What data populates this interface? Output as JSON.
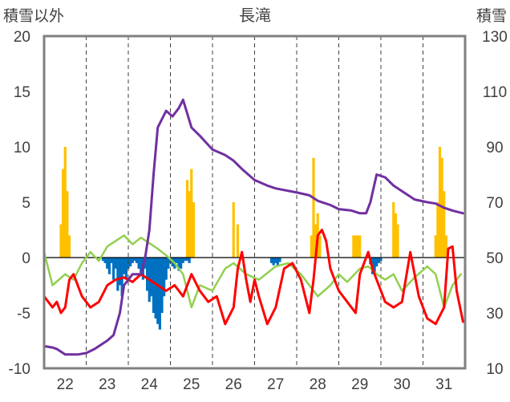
{
  "chart_data": {
    "type": "mixed",
    "title": "長滝",
    "left_axis_label": "積雪以外",
    "right_axis_label": "積雪",
    "left_ylim": [
      -10,
      20
    ],
    "left_ticks": [
      -10,
      -5,
      0,
      5,
      10,
      15,
      20
    ],
    "right_ylim": [
      10,
      130
    ],
    "right_ticks": [
      10,
      30,
      50,
      70,
      90,
      110,
      130
    ],
    "xlim": [
      21.5,
      31.5
    ],
    "x_tick_values": [
      22,
      23,
      24,
      25,
      26,
      27,
      28,
      29,
      30,
      31
    ],
    "x_tick_labels": [
      "22",
      "23",
      "24",
      "25",
      "26",
      "27",
      "28",
      "29",
      "30",
      "31"
    ],
    "grid": "vertical dashed at day boundaries",
    "colors": {
      "snow_depth": "#7030a0",
      "temperature": "#ff0000",
      "precipitation": "#ffc000",
      "snowfall_change": "#0070c0",
      "other_line": "#92d050",
      "frame": "#808080",
      "zero_line": "#000000"
    },
    "series": [
      {
        "axis": "right",
        "kind": "line",
        "color": "#7030a0",
        "x": [
          21.5,
          21.7,
          21.8,
          22.0,
          22.3,
          22.5,
          22.7,
          22.8,
          23.0,
          23.15,
          23.3,
          23.4,
          23.5,
          23.6,
          23.8,
          23.9,
          24.0,
          24.1,
          24.2,
          24.4,
          24.55,
          24.7,
          24.8,
          25.0,
          25.2,
          25.5,
          25.8,
          26.0,
          26.2,
          26.5,
          26.8,
          27.0,
          27.5,
          27.8,
          28.0,
          28.3,
          28.5,
          28.8,
          29.0,
          29.15,
          29.25,
          29.4,
          29.6,
          29.8,
          30.0,
          30.3,
          30.6,
          30.8,
          31.0,
          31.2,
          31.45
        ],
        "y": [
          18,
          17.5,
          17,
          15,
          15,
          15.5,
          17,
          18,
          20,
          22,
          30,
          40,
          42,
          44,
          44,
          50,
          60,
          80,
          97,
          103,
          101,
          104,
          107,
          97,
          94,
          89,
          87,
          85,
          82,
          78,
          76,
          75,
          73.5,
          72.5,
          70.5,
          69,
          67.5,
          67,
          66,
          66,
          70,
          80,
          79,
          76,
          74,
          71,
          70,
          69.5,
          68,
          67,
          66
        ]
      },
      {
        "axis": "left",
        "kind": "line",
        "color": "#92d050",
        "x": [
          21.5,
          21.7,
          22.0,
          22.2,
          22.4,
          22.6,
          22.8,
          23.0,
          23.2,
          23.4,
          23.6,
          23.8,
          24.0,
          24.2,
          24.4,
          24.6,
          24.8,
          25.0,
          25.2,
          25.5,
          25.8,
          26.0,
          26.3,
          26.6,
          27.0,
          27.3,
          27.6,
          28.0,
          28.3,
          28.5,
          28.7,
          29.0,
          29.2,
          29.4,
          29.6,
          29.8,
          30.0,
          30.3,
          30.6,
          30.8,
          31.0,
          31.2,
          31.4
        ],
        "y": [
          0.5,
          -2.5,
          -1.5,
          -2.0,
          -0.5,
          0.5,
          -0.3,
          1.0,
          1.5,
          2.0,
          1.2,
          1.8,
          1.3,
          0.8,
          0.2,
          -0.5,
          -1.5,
          -4.5,
          -2.5,
          -3.0,
          -1.0,
          -0.5,
          -1.5,
          -2.0,
          -0.8,
          -0.5,
          -1.5,
          -3.5,
          -2.5,
          -1.5,
          -2.2,
          -1.0,
          -0.8,
          -1.5,
          -2.0,
          -1.5,
          -3.0,
          -1.8,
          -0.8,
          -1.5,
          -4.5,
          -2.5,
          -1.5
        ]
      },
      {
        "axis": "left",
        "kind": "line",
        "color": "#ff0000",
        "x": [
          21.5,
          21.7,
          21.8,
          21.9,
          22.0,
          22.1,
          22.2,
          22.4,
          22.6,
          22.8,
          23.0,
          23.2,
          23.4,
          23.6,
          23.8,
          24.0,
          24.2,
          24.4,
          24.6,
          24.8,
          25.0,
          25.2,
          25.4,
          25.6,
          25.8,
          26.0,
          26.1,
          26.2,
          26.3,
          26.4,
          26.5,
          26.6,
          26.8,
          27.0,
          27.2,
          27.4,
          27.6,
          27.8,
          27.9,
          28.0,
          28.1,
          28.2,
          28.3,
          28.5,
          28.7,
          28.9,
          29.0,
          29.2,
          29.3,
          29.4,
          29.6,
          29.8,
          30.0,
          30.2,
          30.4,
          30.6,
          30.8,
          31.0,
          31.1,
          31.2,
          31.3,
          31.45
        ],
        "y": [
          -3.5,
          -4.5,
          -4.0,
          -5.0,
          -4.5,
          -2.0,
          -1.5,
          -3.5,
          -4.5,
          -4.0,
          -2.5,
          -2.0,
          -1.8,
          -2.2,
          -1.5,
          -2.0,
          -2.5,
          -3.0,
          -2.5,
          -3.5,
          -1.5,
          -3.0,
          -4.0,
          -3.5,
          -6.0,
          -4.5,
          -1.0,
          0.5,
          -2.0,
          -4.0,
          -2.0,
          -3.5,
          -6.0,
          -4.5,
          -1.0,
          -0.5,
          -2.0,
          -5.0,
          -2.0,
          2.0,
          2.5,
          1.5,
          -1.0,
          -3.0,
          -4.0,
          -5.0,
          -1.5,
          0.5,
          -1.0,
          -2.0,
          -4.0,
          -4.5,
          -4.0,
          0.5,
          -3.5,
          -5.5,
          -6.0,
          -4.5,
          0.8,
          1.0,
          -3.0,
          -5.8
        ]
      }
    ],
    "bars": [
      {
        "axis": "left",
        "color": "#ffc000",
        "x": [
          21.9,
          21.95,
          22.0,
          22.05,
          22.1,
          24.9,
          24.95,
          25.0,
          25.05,
          26.0,
          26.1,
          27.85,
          27.9,
          27.95,
          28.0,
          28.05,
          28.85,
          28.9,
          28.95,
          29.0,
          29.8,
          29.85,
          29.9,
          30.8,
          30.85,
          30.9,
          30.95,
          31.0,
          31.05
        ],
        "values": [
          3,
          8,
          10,
          6,
          2,
          7,
          6,
          8,
          5,
          5,
          3,
          2,
          9,
          3,
          4,
          2,
          2,
          2,
          2,
          2,
          5,
          4,
          3,
          2,
          5,
          10,
          9,
          6,
          2
        ]
      },
      {
        "axis": "left",
        "color": "#0070c0",
        "x": [
          22.9,
          22.95,
          23.0,
          23.05,
          23.1,
          23.15,
          23.2,
          23.25,
          23.3,
          23.35,
          23.4,
          23.45,
          23.5,
          23.55,
          23.6,
          23.65,
          23.7,
          23.75,
          23.8,
          23.85,
          23.9,
          23.95,
          24.0,
          24.05,
          24.1,
          24.15,
          24.2,
          24.25,
          24.3,
          24.35,
          24.4,
          24.45,
          24.5,
          24.55,
          24.6,
          24.65,
          24.7,
          24.75,
          24.8,
          24.85,
          24.9,
          24.95,
          26.9,
          26.95,
          27.0,
          27.05,
          27.1,
          29.25,
          29.3,
          29.35,
          29.4,
          29.45,
          29.5
        ],
        "values": [
          -0.3,
          -0.5,
          -1.0,
          -1.5,
          -0.5,
          -2.0,
          -1.0,
          -3.0,
          -2.5,
          -3.5,
          -1.5,
          -2.0,
          -1.0,
          -0.8,
          -0.5,
          -0.3,
          -0.5,
          -1.0,
          -1.5,
          -2.0,
          -1.0,
          -3.0,
          -4.0,
          -3.5,
          -5.0,
          -5.5,
          -6.0,
          -6.5,
          -5.0,
          -3.5,
          -2.0,
          -1.0,
          -0.5,
          -0.8,
          -1.0,
          -0.5,
          -1.2,
          -1.0,
          -0.5,
          -0.3,
          -0.3,
          -0.5,
          -0.5,
          -0.7,
          -0.5,
          -0.8,
          -0.4,
          -0.6,
          -1.5,
          -1.5,
          -0.8,
          -0.5,
          -0.3
        ]
      }
    ]
  }
}
